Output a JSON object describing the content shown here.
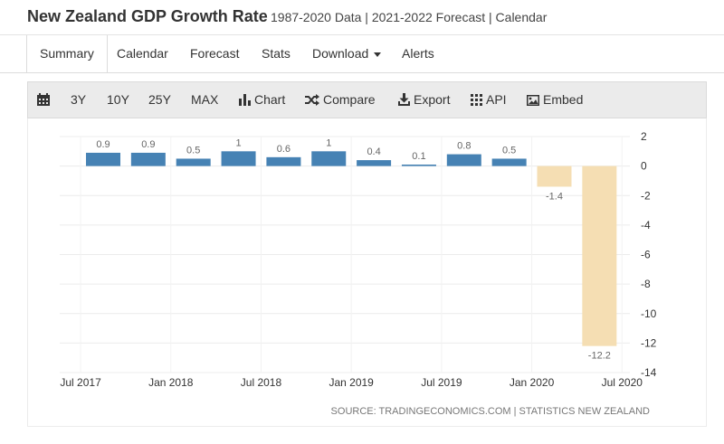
{
  "header": {
    "title": "New Zealand GDP Growth Rate",
    "subtitle": "1987-2020 Data | 2021-2022 Forecast | Calendar"
  },
  "tabs": [
    {
      "label": "Summary",
      "active": true
    },
    {
      "label": "Calendar"
    },
    {
      "label": "Forecast"
    },
    {
      "label": "Stats"
    },
    {
      "label": "Download"
    },
    {
      "label": "Alerts"
    }
  ],
  "toolbar": {
    "calendar_icon": "calendar-icon",
    "ranges": [
      "3Y",
      "10Y",
      "25Y",
      "MAX"
    ],
    "buttons": [
      {
        "label": "Chart",
        "icon": "bar-chart-icon"
      },
      {
        "label": "Compare",
        "icon": "shuffle-icon"
      },
      {
        "label": "Export",
        "icon": "download-icon"
      },
      {
        "label": "API",
        "icon": "grid-icon"
      },
      {
        "label": "Embed",
        "icon": "image-icon"
      }
    ]
  },
  "colors": {
    "actual": "#4682b4",
    "forecast": "#f5deb3"
  },
  "chart_data": {
    "type": "bar",
    "source": "SOURCE: TRADINGECONOMICS.COM | STATISTICS NEW ZEALAND",
    "categories": [
      "Q3 2017",
      "Q4 2017",
      "Q1 2018",
      "Q2 2018",
      "Q3 2018",
      "Q4 2018",
      "Q1 2019",
      "Q2 2019",
      "Q3 2019",
      "Q4 2019",
      "Q1 2020",
      "Q2 2020"
    ],
    "values": [
      0.9,
      0.9,
      0.5,
      1,
      0.6,
      1,
      0.4,
      0.1,
      0.8,
      0.5,
      -1.4,
      -12.2
    ],
    "value_labels": [
      "0.9",
      "0.9",
      "0.5",
      "1",
      "0.6",
      "1",
      "0.4",
      "0.1",
      "0.8",
      "0.5",
      "-1.4",
      "-12.2"
    ],
    "highlight_color": [
      "actual",
      "actual",
      "actual",
      "actual",
      "actual",
      "actual",
      "actual",
      "actual",
      "actual",
      "actual",
      "forecast",
      "forecast"
    ],
    "x_tick_labels": [
      "Jul 2017",
      "Jan 2018",
      "Jul 2018",
      "Jan 2019",
      "Jul 2019",
      "Jan 2020",
      "Jul 2020"
    ],
    "y_ticks": [
      2,
      0,
      -2,
      -4,
      -6,
      -8,
      -10,
      -12,
      -14
    ],
    "ylim": [
      -14,
      2
    ],
    "grid": true
  }
}
